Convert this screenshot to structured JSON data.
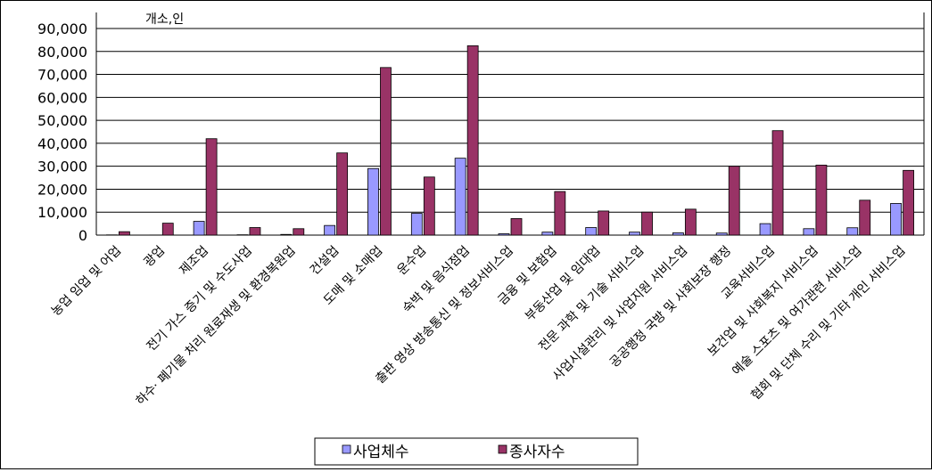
{
  "chart_data": {
    "type": "bar",
    "unit_label": "개소,인",
    "ylim": [
      0,
      90000
    ],
    "yticks": [
      "0",
      "10,000",
      "20,000",
      "30,000",
      "40,000",
      "50,000",
      "60,000",
      "70,000",
      "80,000",
      "90,000"
    ],
    "grid": true,
    "legend_position": "bottom",
    "categories": [
      "농업 임업 및 어업",
      "광업",
      "제조업",
      "전기 가스 증기 및 수도사업",
      "하수· 폐기물 처리 원료재생 및 환경복원업",
      "건설업",
      "도매 및 소매업",
      "운수업",
      "숙박 및 음식점업",
      "출판 영상 방송통신 및 정보서비스업",
      "금융 및 보험업",
      "부동산업 및 임대업",
      "전문 과학 및 기술 서비스업",
      "사업시설관리 및 사업지원 서비스업",
      "공공행정 국방 및 사회보장 행정",
      "교육서비스업",
      "보건업 및 사회복지 서비스업",
      "예술 스포츠 및 여가관련 서비스업",
      "협회 및 단체 수리 및 기타 개인 서비스업"
    ],
    "series": [
      {
        "name": "사업체수",
        "color": "#9999ff",
        "values": [
          100,
          50,
          6000,
          150,
          300,
          4200,
          29000,
          9500,
          33500,
          600,
          1300,
          3300,
          1300,
          1000,
          900,
          5000,
          2800,
          3200,
          13800
        ]
      },
      {
        "name": "종사자수",
        "color": "#993366",
        "values": [
          1500,
          5200,
          42000,
          3300,
          2800,
          35800,
          73000,
          25300,
          82500,
          7200,
          19000,
          10500,
          10000,
          11300,
          30000,
          45500,
          30500,
          15200,
          28200
        ]
      }
    ]
  }
}
